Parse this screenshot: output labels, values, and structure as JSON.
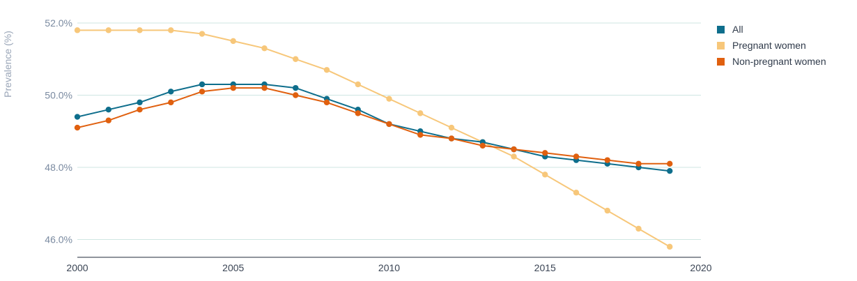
{
  "chart_data": {
    "type": "line",
    "ylabel": "Prevalence (%)",
    "xlim": [
      2000,
      2020
    ],
    "ylim": [
      45.5,
      52.2
    ],
    "x_ticks": [
      "2000",
      "2005",
      "2010",
      "2015",
      "2020"
    ],
    "x_tick_values": [
      2000,
      2005,
      2010,
      2015,
      2020
    ],
    "y_ticks": [
      "52.0%",
      "50.0%",
      "48.0%",
      "46.0%"
    ],
    "y_tick_values": [
      52,
      50,
      48,
      46
    ],
    "grid": "horizontal",
    "legend_position": "top-right",
    "x": [
      2000,
      2001,
      2002,
      2003,
      2004,
      2005,
      2006,
      2007,
      2008,
      2009,
      2010,
      2011,
      2012,
      2013,
      2014,
      2015,
      2016,
      2017,
      2018,
      2019
    ],
    "series": [
      {
        "name": "All",
        "color": "#0e6e8c",
        "values": [
          49.4,
          49.6,
          49.8,
          50.1,
          50.3,
          50.3,
          50.3,
          50.2,
          49.9,
          49.6,
          49.2,
          49.0,
          48.8,
          48.7,
          48.5,
          48.3,
          48.2,
          48.1,
          48.0,
          47.9
        ]
      },
      {
        "name": "Pregnant women",
        "color": "#f7c77a",
        "values": [
          51.8,
          51.8,
          51.8,
          51.8,
          51.7,
          51.5,
          51.3,
          51.0,
          50.7,
          50.3,
          49.9,
          49.5,
          49.1,
          48.7,
          48.3,
          47.8,
          47.3,
          46.8,
          46.3,
          45.8
        ]
      },
      {
        "name": "Non-pregnant women",
        "color": "#e0600f",
        "values": [
          49.1,
          49.3,
          49.6,
          49.8,
          50.1,
          50.2,
          50.2,
          50.0,
          49.8,
          49.5,
          49.2,
          48.9,
          48.8,
          48.6,
          48.5,
          48.4,
          48.3,
          48.2,
          48.1,
          48.1
        ]
      }
    ]
  }
}
